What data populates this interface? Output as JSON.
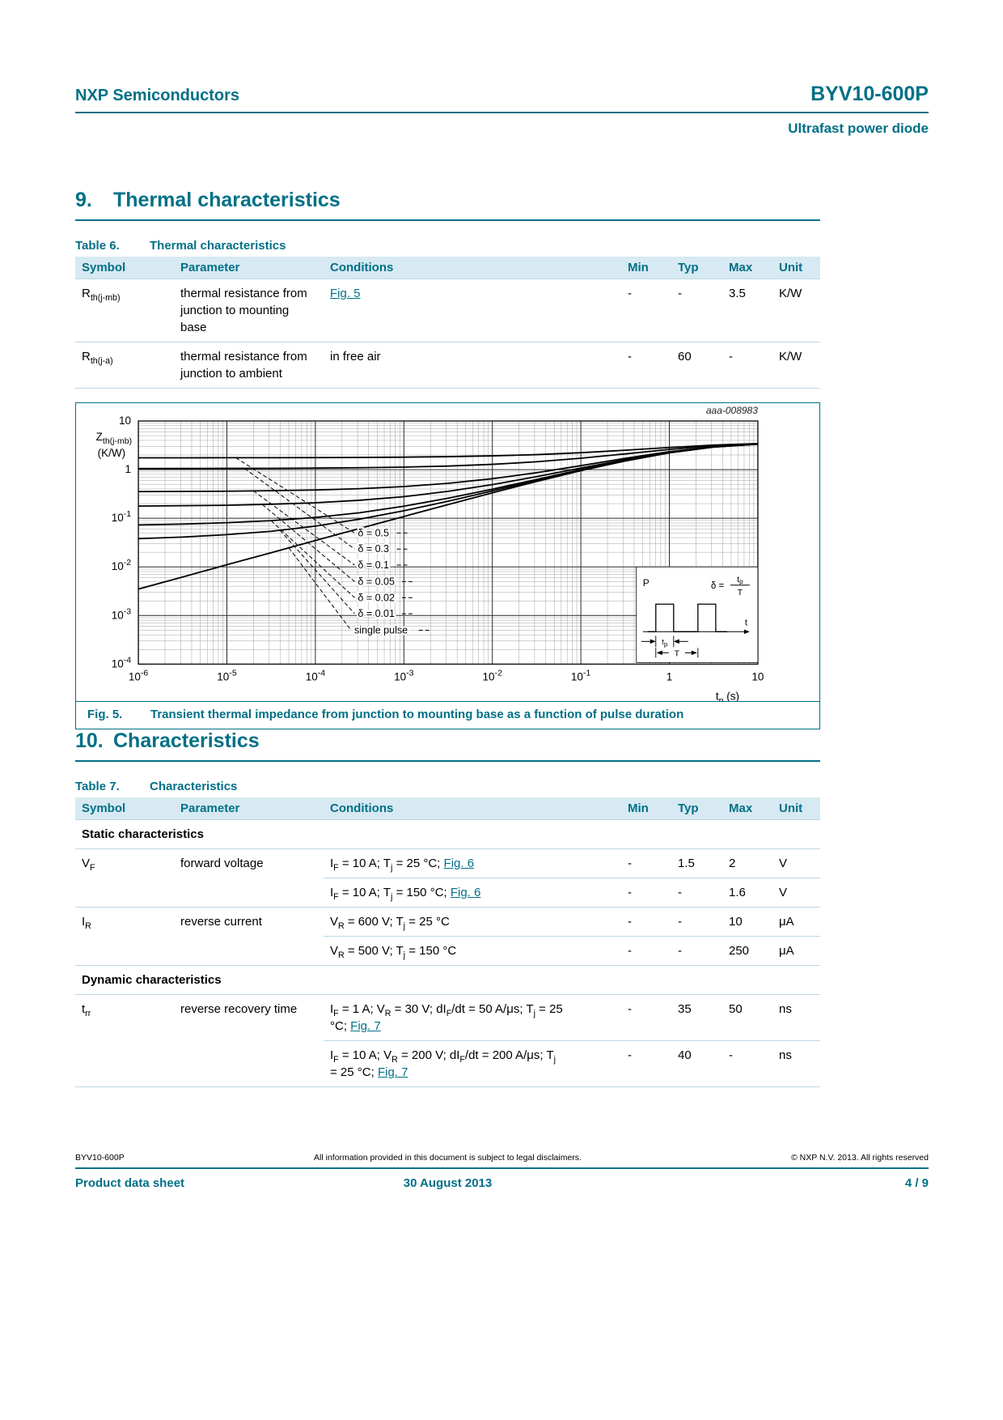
{
  "theme": {
    "accent": "#007086",
    "header_bg": "#d7e9f2",
    "line": "#b9d8e4"
  },
  "header": {
    "vendor": "NXP Semiconductors",
    "part": "BYV10-600P",
    "subtitle": "Ultrafast power diode"
  },
  "section9": {
    "number": "9.",
    "title": "Thermal characteristics"
  },
  "table6": {
    "caption_label": "Table 6.",
    "caption_title": "Thermal characteristics",
    "headers": [
      "Symbol",
      "Parameter",
      "Conditions",
      "",
      "Min",
      "Typ",
      "Max",
      "Unit"
    ],
    "rows": [
      {
        "symbol": [
          [
            "t",
            "R"
          ],
          [
            "sub",
            "th(j-mb)"
          ]
        ],
        "parameter": "thermal resistance from junction to mounting base",
        "conditions": [
          [
            "link",
            "Fig. 5"
          ]
        ],
        "min": "-",
        "typ": "-",
        "max": "3.5",
        "unit": "K/W"
      },
      {
        "symbol": [
          [
            "t",
            "R"
          ],
          [
            "sub",
            "th(j-a)"
          ]
        ],
        "parameter": "thermal resistance from junction to ambient",
        "conditions": [
          [
            "t",
            "in free air"
          ]
        ],
        "min": "-",
        "typ": "60",
        "max": "-",
        "unit": "K/W"
      }
    ]
  },
  "figure5": {
    "caption_label": "Fig. 5.",
    "caption_title": "Transient thermal impedance from junction to mounting base as a function of pulse duration",
    "watermark": "aaa-008983",
    "inset": {
      "p_label": "P",
      "t_label": "t",
      "tp_main": "t",
      "tp_sub": "p",
      "period_label": "T",
      "delta_label": "δ ="
    }
  },
  "chart_data": {
    "type": "line",
    "x_scale": "log",
    "y_scale": "log",
    "xlim": [
      1e-06,
      10
    ],
    "ylim": [
      0.0001,
      10
    ],
    "xlabel": "tp (s)",
    "ylabel": "Zth(j-mb) (K/W)",
    "xlabel_rich": [
      [
        "t",
        "t"
      ],
      [
        "sub",
        "p"
      ],
      [
        "t",
        " (s)"
      ]
    ],
    "ylabel_rich1": [
      [
        "t",
        "Z"
      ],
      [
        "sub",
        "th(j-mb)"
      ]
    ],
    "ylabel_rich2": [
      [
        "t",
        "(K/W)"
      ]
    ],
    "x": [
      1e-06,
      3.16e-06,
      1e-05,
      3.16e-05,
      0.0001,
      0.000316,
      0.001,
      0.00316,
      0.01,
      0.0316,
      0.1,
      0.316,
      1,
      3.16,
      10
    ],
    "series": [
      {
        "name": "δ = 0.5",
        "values": [
          1.752,
          1.753,
          1.756,
          1.76,
          1.767,
          1.781,
          1.804,
          1.846,
          1.917,
          2.035,
          2.226,
          2.502,
          2.856,
          3.204,
          3.426
        ]
      },
      {
        "name": "δ = 0.3",
        "values": [
          1.052,
          1.054,
          1.058,
          1.064,
          1.074,
          1.093,
          1.126,
          1.184,
          1.283,
          1.449,
          1.716,
          2.103,
          2.599,
          3.086,
          3.396
        ]
      },
      {
        "name": "δ = 0.1",
        "values": [
          0.353,
          0.356,
          0.36,
          0.368,
          0.381,
          0.406,
          0.448,
          0.522,
          0.65,
          0.863,
          1.206,
          1.704,
          2.341,
          2.968,
          3.367
        ]
      },
      {
        "name": "δ = 0.05",
        "values": [
          0.178,
          0.181,
          0.185,
          0.194,
          0.208,
          0.234,
          0.278,
          0.357,
          0.491,
          0.717,
          1.079,
          1.604,
          2.277,
          2.938,
          3.359
        ]
      },
      {
        "name": "δ = 0.02",
        "values": [
          0.073,
          0.076,
          0.081,
          0.089,
          0.104,
          0.13,
          0.177,
          0.258,
          0.396,
          0.629,
          1.002,
          1.544,
          2.238,
          2.921,
          3.355
        ]
      },
      {
        "name": "δ = 0.01",
        "values": [
          0.038,
          0.041,
          0.046,
          0.054,
          0.069,
          0.096,
          0.143,
          0.224,
          0.365,
          0.599,
          0.977,
          1.524,
          2.225,
          2.914,
          3.353
        ]
      },
      {
        "name": "single pulse",
        "values": [
          0.0035,
          0.0062,
          0.0111,
          0.0196,
          0.0348,
          0.0617,
          0.1089,
          0.1914,
          0.3331,
          0.5702,
          0.9515,
          1.5042,
          2.2124,
          2.9087,
          3.3517
        ]
      }
    ],
    "x_ticks": [
      [
        "1e-6",
        "10",
        "-6"
      ],
      [
        "1e-5",
        "10",
        "-5"
      ],
      [
        "1e-4",
        "10",
        "-4"
      ],
      [
        "1e-3",
        "10",
        "-3"
      ],
      [
        "1e-2",
        "10",
        "-2"
      ],
      [
        "1e-1",
        "10",
        "-1"
      ],
      [
        "1",
        "1",
        ""
      ],
      [
        "10",
        "10",
        ""
      ]
    ],
    "y_ticks": [
      [
        "10",
        "10",
        ""
      ],
      [
        "1",
        "1",
        ""
      ],
      [
        "1e-1",
        "10",
        "-1"
      ],
      [
        "1e-2",
        "10",
        "-2"
      ],
      [
        "1e-3",
        "10",
        "-3"
      ],
      [
        "1e-4",
        "10",
        "-4"
      ]
    ],
    "curve_labels": [
      {
        "text": "δ = 0.5",
        "lx": -3.52,
        "ly": -1.37,
        "ax": -4.9
      },
      {
        "text": "δ = 0.3",
        "lx": -3.52,
        "ly": -1.7,
        "ax": -4.8
      },
      {
        "text": "δ = 0.1",
        "lx": -3.52,
        "ly": -2.03,
        "ax": -4.7
      },
      {
        "text": "δ = 0.05",
        "lx": -3.52,
        "ly": -2.37,
        "ax": -4.6
      },
      {
        "text": "δ = 0.02",
        "lx": -3.52,
        "ly": -2.7,
        "ax": -4.5
      },
      {
        "text": "δ = 0.01",
        "lx": -3.52,
        "ly": -3.03,
        "ax": -4.4
      },
      {
        "text": "single pulse",
        "lx": -3.56,
        "ly": -3.37,
        "ax": -4.3
      }
    ]
  },
  "section10": {
    "number": "10.",
    "title": "Characteristics"
  },
  "table7": {
    "caption_label": "Table 7.",
    "caption_title": "Characteristics",
    "headers": [
      "Symbol",
      "Parameter",
      "Conditions",
      "",
      "Min",
      "Typ",
      "Max",
      "Unit"
    ],
    "static_header": "Static characteristics",
    "dynamic_header": "Dynamic characteristics",
    "rows": [
      {
        "symbol": [
          [
            "t",
            "V"
          ],
          [
            "sub",
            "F"
          ]
        ],
        "parameter": "forward voltage",
        "conditions": [
          [
            "t",
            "I"
          ],
          [
            "sub",
            "F"
          ],
          [
            "t",
            " = 10 A; T"
          ],
          [
            "sub",
            "j"
          ],
          [
            "t",
            " = 25 °C; "
          ],
          [
            "link",
            "Fig. 6"
          ]
        ],
        "min": "-",
        "typ": "1.5",
        "max": "2",
        "unit": "V"
      },
      {
        "conditions": [
          [
            "t",
            "I"
          ],
          [
            "sub",
            "F"
          ],
          [
            "t",
            " = 10 A; T"
          ],
          [
            "sub",
            "j"
          ],
          [
            "t",
            " = 150 °C; "
          ],
          [
            "link",
            "Fig. 6"
          ]
        ],
        "min": "-",
        "typ": "-",
        "max": "1.6",
        "unit": "V"
      },
      {
        "symbol": [
          [
            "t",
            "I"
          ],
          [
            "sub",
            "R"
          ]
        ],
        "parameter": "reverse current",
        "conditions": [
          [
            "t",
            "V"
          ],
          [
            "sub",
            "R"
          ],
          [
            "t",
            " = 600 V; T"
          ],
          [
            "sub",
            "j"
          ],
          [
            "t",
            " = 25 °C"
          ]
        ],
        "min": "-",
        "typ": "-",
        "max": "10",
        "unit": "μA"
      },
      {
        "conditions": [
          [
            "t",
            "V"
          ],
          [
            "sub",
            "R"
          ],
          [
            "t",
            " = 500 V; T"
          ],
          [
            "sub",
            "j"
          ],
          [
            "t",
            " = 150 °C"
          ]
        ],
        "min": "-",
        "typ": "-",
        "max": "250",
        "unit": "μA"
      },
      {
        "symbol": [
          [
            "t",
            "t"
          ],
          [
            "sub",
            "rr"
          ]
        ],
        "parameter": "reverse recovery time",
        "conditions": [
          [
            "t",
            "I"
          ],
          [
            "sub",
            "F"
          ],
          [
            "t",
            " = 1 A; V"
          ],
          [
            "sub",
            "R"
          ],
          [
            "t",
            " = 30 V; dI"
          ],
          [
            "sub",
            "F"
          ],
          [
            "t",
            "/dt = 50 A/μs; T"
          ],
          [
            "sub",
            "j"
          ],
          [
            "t",
            " = 25 °C; "
          ],
          [
            "link",
            "Fig. 7"
          ]
        ],
        "min": "-",
        "typ": "35",
        "max": "50",
        "unit": "ns"
      },
      {
        "conditions": [
          [
            "t",
            "I"
          ],
          [
            "sub",
            "F"
          ],
          [
            "t",
            " = 10 A; V"
          ],
          [
            "sub",
            "R"
          ],
          [
            "t",
            " = 200 V; dI"
          ],
          [
            "sub",
            "F"
          ],
          [
            "t",
            "/dt = 200 A/μs; T"
          ],
          [
            "sub",
            "j"
          ],
          [
            "t",
            " = 25 °C; "
          ],
          [
            "link",
            "Fig. 7"
          ]
        ],
        "min": "-",
        "typ": "40",
        "max": "-",
        "unit": "ns"
      }
    ]
  },
  "footer": {
    "left_small": "BYV10-600P",
    "center_small": "All information provided in this document is subject to legal disclaimers.",
    "right_small": "© NXP N.V. 2013. All rights reserved",
    "left_bold": "Product data sheet",
    "center_bold": "30 August 2013",
    "right_bold": "4 / 9"
  }
}
